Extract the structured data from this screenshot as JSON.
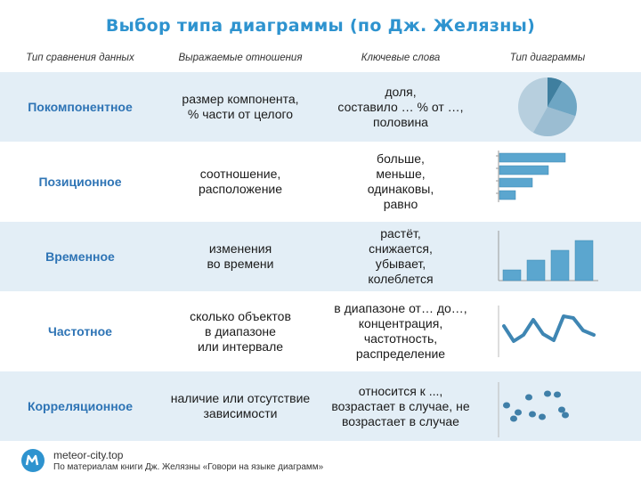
{
  "title": "Выбор  типа  диаграммы  (по Дж. Желязны)",
  "headers": {
    "type": "Тип сравнения данных",
    "relation": "Выражаемые отношения",
    "keywords": "Ключевые слова",
    "chart": "Тип диаграммы"
  },
  "rows": [
    {
      "type": "Покомпонентное",
      "relation": "размер компонента,\n% части от целого",
      "keywords": "доля,\nсоставило … % от …,\nполовина",
      "icon": "pie-chart-icon"
    },
    {
      "type": "Позиционное",
      "relation": "соотношение,\nрасположение",
      "keywords": "больше,\nменьше,\nодинаковы,\nравно",
      "icon": "horizontal-bar-chart-icon"
    },
    {
      "type": "Временное",
      "relation": "изменения\nво времени",
      "keywords": "растёт,\nснижается,\nубывает,\nколеблется",
      "icon": "vertical-bar-chart-icon"
    },
    {
      "type": "Частотное",
      "relation": "сколько объектов\nв диапазоне\nили интервале",
      "keywords": "в диапазоне от… до…,\nконцентрация,\nчастотность,\nраспределение",
      "icon": "line-chart-icon"
    },
    {
      "type": "Корреляционное",
      "relation": "наличие или отсутствие\nзависимости",
      "keywords": "относится к ...,\nвозрастает в случае, не\nвозрастает в случае",
      "icon": "scatter-chart-icon"
    }
  ],
  "colors": {
    "title": "#2e93cf",
    "type_text": "#2e74b5",
    "row_shade": "#e3eef6",
    "chart_fill": "#5ba6cf"
  },
  "footer": {
    "site": "meteor-city.top",
    "note": "По материалам книги Дж. Желязны «Говори на языке диаграмм»"
  }
}
